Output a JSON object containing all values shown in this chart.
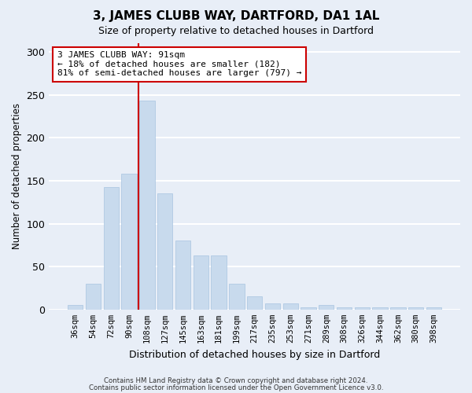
{
  "title": "3, JAMES CLUBB WAY, DARTFORD, DA1 1AL",
  "subtitle": "Size of property relative to detached houses in Dartford",
  "xlabel": "Distribution of detached houses by size in Dartford",
  "ylabel": "Number of detached properties",
  "categories": [
    "36sqm",
    "54sqm",
    "72sqm",
    "90sqm",
    "108sqm",
    "127sqm",
    "145sqm",
    "163sqm",
    "181sqm",
    "199sqm",
    "217sqm",
    "235sqm",
    "253sqm",
    "271sqm",
    "289sqm",
    "308sqm",
    "326sqm",
    "344sqm",
    "362sqm",
    "380sqm",
    "398sqm"
  ],
  "values": [
    5,
    30,
    143,
    158,
    243,
    135,
    80,
    63,
    63,
    30,
    15,
    7,
    7,
    3,
    5,
    3,
    3,
    3,
    3,
    3,
    3
  ],
  "bar_color": "#c8daed",
  "bar_edge_color": "#a8c4e0",
  "vline_x": 3.5,
  "vline_color": "#cc0000",
  "annotation_text": "3 JAMES CLUBB WAY: 91sqm\n← 18% of detached houses are smaller (182)\n81% of semi-detached houses are larger (797) →",
  "annotation_box_facecolor": "#ffffff",
  "annotation_box_edgecolor": "#cc0000",
  "background_color": "#e8eef7",
  "grid_color": "#ffffff",
  "footer_line1": "Contains HM Land Registry data © Crown copyright and database right 2024.",
  "footer_line2": "Contains public sector information licensed under the Open Government Licence v3.0.",
  "ylim": [
    0,
    310
  ],
  "yticks": [
    0,
    50,
    100,
    150,
    200,
    250,
    300
  ]
}
